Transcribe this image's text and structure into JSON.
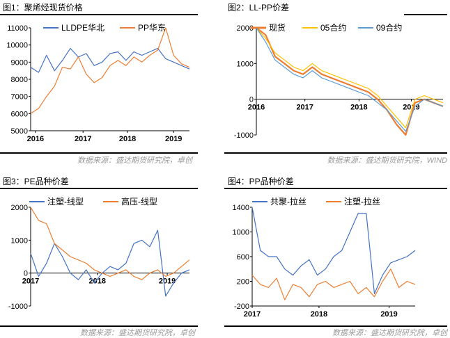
{
  "figures": [
    {
      "title": "图1：聚烯烃现货价格",
      "source": "数据来源：盛达期货研究院，卓创"
    },
    {
      "title": "图2：LL-PP价差",
      "source": "数据来源：盛达期货研究院，WIND"
    },
    {
      "title": "图3：PE品种价差",
      "source": "数据来源：盛达期货研究院，卓创"
    },
    {
      "title": "图4：PP品种价差",
      "source": "数据来源：盛达期货研究院，卓创"
    }
  ],
  "chart_data": [
    {
      "type": "line",
      "title": "图1：聚烯烃现货价格",
      "legend_position": "top",
      "ylim": [
        5000,
        11000
      ],
      "yticks": [
        "11000",
        "10000",
        "9000",
        "8000",
        "7000",
        "6000",
        "5000"
      ],
      "xticks": [
        "2016",
        "2017",
        "2018",
        "2019"
      ],
      "grid": false,
      "colors": [
        "#4472C4",
        "#ED7D31"
      ],
      "series": [
        {
          "name": "LLDPE华北",
          "color": "#4472C4",
          "x": [
            0,
            0.05,
            0.1,
            0.15,
            0.2,
            0.25,
            0.3,
            0.35,
            0.4,
            0.45,
            0.5,
            0.55,
            0.6,
            0.65,
            0.7,
            0.75,
            0.8,
            0.85,
            0.9,
            0.95,
            1
          ],
          "values": [
            8700,
            8400,
            9400,
            8500,
            9100,
            9800,
            9300,
            9500,
            8800,
            9000,
            9500,
            9600,
            9100,
            9600,
            9400,
            9600,
            9800,
            9200,
            9000,
            8800,
            8600
          ]
        },
        {
          "name": "PP华东",
          "color": "#ED7D31",
          "x": [
            0,
            0.05,
            0.1,
            0.15,
            0.2,
            0.25,
            0.3,
            0.35,
            0.4,
            0.45,
            0.5,
            0.55,
            0.6,
            0.65,
            0.7,
            0.75,
            0.8,
            0.85,
            0.9,
            0.95,
            1
          ],
          "values": [
            6000,
            6300,
            7000,
            7600,
            8700,
            8600,
            9300,
            8300,
            7800,
            8100,
            8800,
            9100,
            8800,
            9300,
            9000,
            9400,
            9700,
            11000,
            9400,
            8900,
            8700
          ]
        }
      ]
    },
    {
      "type": "line",
      "title": "图2：LL-PP价差",
      "legend_position": "top",
      "ylim": [
        -1000,
        2000
      ],
      "yticks": [
        "2000",
        "1000",
        "0",
        "-1000"
      ],
      "xticks": [
        "2016",
        "2017",
        "2018",
        "2019"
      ],
      "grid": false,
      "colors": [
        "#ED7D31",
        "#FFC000",
        "#5B9BD5"
      ],
      "series": [
        {
          "name": "现货",
          "color": "#ED7D31",
          "x": [
            0,
            0.05,
            0.1,
            0.15,
            0.2,
            0.25,
            0.3,
            0.35,
            0.4,
            0.45,
            0.5,
            0.55,
            0.6,
            0.65,
            0.7,
            0.75,
            0.8,
            0.85,
            0.9,
            0.95,
            1
          ],
          "values": [
            2000,
            1800,
            1200,
            1000,
            800,
            700,
            900,
            700,
            600,
            500,
            400,
            300,
            200,
            0,
            -300,
            -700,
            -1000,
            -100,
            0,
            -100,
            -200
          ]
        },
        {
          "name": "05合约",
          "color": "#FFC000",
          "x": [
            0,
            0.05,
            0.1,
            0.15,
            0.2,
            0.25,
            0.3,
            0.35,
            0.4,
            0.45,
            0.5,
            0.55,
            0.6,
            0.65,
            0.7,
            0.75,
            0.8,
            0.85,
            0.9,
            0.95,
            1
          ],
          "values": [
            2000,
            1700,
            1300,
            1100,
            900,
            800,
            1000,
            800,
            700,
            600,
            500,
            400,
            300,
            100,
            -200,
            -500,
            -800,
            0,
            100,
            0,
            -100
          ]
        },
        {
          "name": "09合约",
          "color": "#5B9BD5",
          "x": [
            0,
            0.05,
            0.1,
            0.15,
            0.2,
            0.25,
            0.3,
            0.35,
            0.4,
            0.45,
            0.5,
            0.55,
            0.6,
            0.65,
            0.7,
            0.75,
            0.8,
            0.85,
            0.9,
            0.95,
            1
          ],
          "values": [
            2000,
            1600,
            1100,
            900,
            700,
            600,
            800,
            600,
            500,
            400,
            300,
            200,
            100,
            -100,
            -300,
            -600,
            -900,
            -200,
            0,
            -100,
            -200
          ]
        }
      ]
    },
    {
      "type": "line",
      "title": "图3：PE品种价差",
      "legend_position": "top",
      "ylim": [
        -1000,
        2000
      ],
      "yticks": [
        "2000",
        "1000",
        "0",
        "-1000"
      ],
      "xticks": [
        "2017",
        "2018",
        "2019"
      ],
      "grid": false,
      "colors": [
        "#4472C4",
        "#ED7D31"
      ],
      "series": [
        {
          "name": "注塑-线型",
          "color": "#4472C4",
          "x": [
            0,
            0.05,
            0.1,
            0.15,
            0.2,
            0.25,
            0.3,
            0.35,
            0.4,
            0.45,
            0.5,
            0.55,
            0.6,
            0.65,
            0.7,
            0.75,
            0.8,
            0.85,
            0.9,
            0.95,
            1
          ],
          "values": [
            600,
            -100,
            300,
            900,
            500,
            0,
            -200,
            100,
            -300,
            0,
            200,
            100,
            300,
            900,
            1000,
            800,
            1300,
            -700,
            -300,
            0,
            100
          ]
        },
        {
          "name": "高压-线型",
          "color": "#ED7D31",
          "x": [
            0,
            0.05,
            0.1,
            0.15,
            0.2,
            0.25,
            0.3,
            0.35,
            0.4,
            0.45,
            0.5,
            0.55,
            0.6,
            0.65,
            0.7,
            0.75,
            0.8,
            0.85,
            0.9,
            0.95,
            1
          ],
          "values": [
            2000,
            1600,
            1500,
            900,
            700,
            500,
            400,
            300,
            100,
            0,
            -100,
            0,
            100,
            -100,
            -200,
            0,
            100,
            -100,
            0,
            200,
            400
          ]
        }
      ]
    },
    {
      "type": "line",
      "title": "图4：PP品种价差",
      "legend_position": "top",
      "ylim": [
        -200,
        1400
      ],
      "yticks": [
        "1400",
        "1000",
        "600",
        "200",
        "-200"
      ],
      "xticks": [
        "2017",
        "2018",
        "2019"
      ],
      "grid": false,
      "colors": [
        "#4472C4",
        "#ED7D31"
      ],
      "series": [
        {
          "name": "共聚-拉丝",
          "color": "#4472C4",
          "x": [
            0,
            0.05,
            0.1,
            0.15,
            0.2,
            0.25,
            0.3,
            0.35,
            0.4,
            0.45,
            0.5,
            0.55,
            0.6,
            0.65,
            0.7,
            0.75,
            0.8,
            0.85,
            0.9,
            0.95,
            1
          ],
          "values": [
            1400,
            700,
            600,
            600,
            400,
            300,
            450,
            550,
            300,
            400,
            600,
            700,
            1000,
            1300,
            1300,
            0,
            300,
            500,
            550,
            600,
            700
          ]
        },
        {
          "name": "注塑-拉丝",
          "color": "#ED7D31",
          "x": [
            0,
            0.05,
            0.1,
            0.15,
            0.2,
            0.25,
            0.3,
            0.35,
            0.4,
            0.45,
            0.5,
            0.55,
            0.6,
            0.65,
            0.7,
            0.75,
            0.8,
            0.85,
            0.9,
            0.95,
            1
          ],
          "values": [
            300,
            150,
            100,
            250,
            -100,
            150,
            100,
            -50,
            150,
            200,
            100,
            150,
            200,
            0,
            100,
            -50,
            200,
            400,
            100,
            200,
            150
          ]
        }
      ]
    }
  ]
}
